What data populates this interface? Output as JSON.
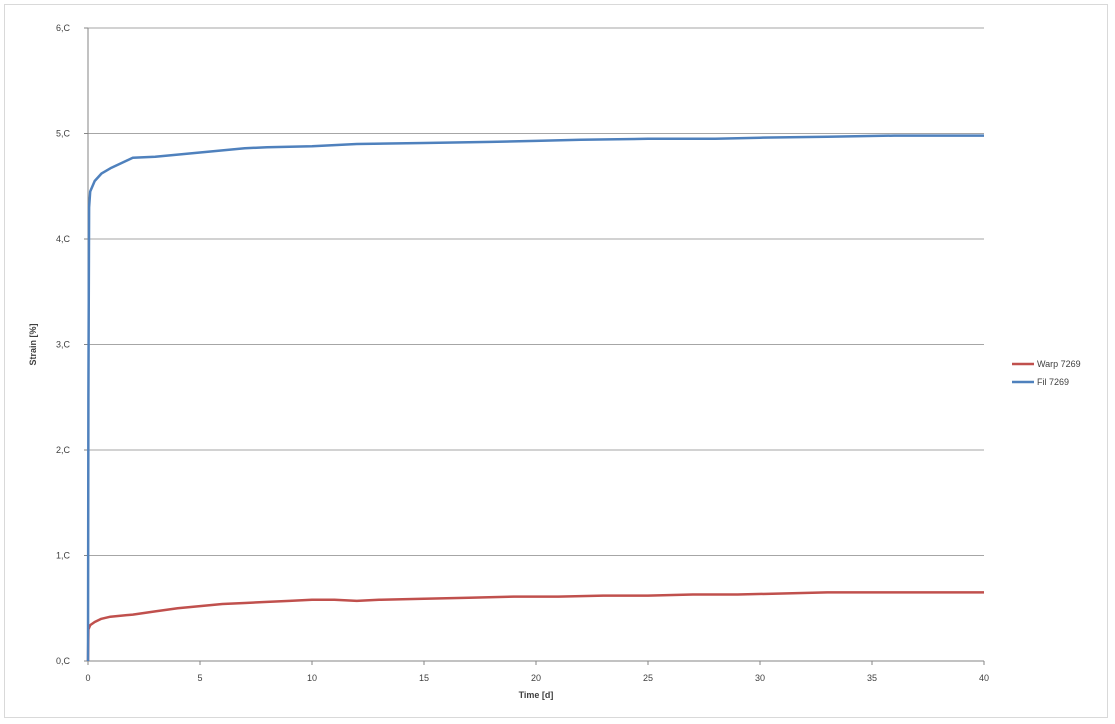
{
  "chart_data": {
    "type": "line",
    "title": "",
    "xlabel": "Time [d]",
    "ylabel": "Strain [%]",
    "xlim": [
      0,
      40
    ],
    "ylim": [
      0,
      6
    ],
    "x_ticks": [
      "0",
      "5",
      "10",
      "15",
      "20",
      "25",
      "30",
      "35",
      "40"
    ],
    "x_tick_values": [
      0,
      5,
      10,
      15,
      20,
      25,
      30,
      35,
      40
    ],
    "y_ticks": [
      "0,C",
      "1,C",
      "2,C",
      "3,C",
      "4,C",
      "5,C",
      "6,C"
    ],
    "y_tick_values": [
      0,
      1,
      2,
      3,
      4,
      5,
      6
    ],
    "grid": "horizontal",
    "legend_position": "right",
    "series": [
      {
        "name": "Warp 7269",
        "color": "#c0504d",
        "points": [
          [
            0,
            0
          ],
          [
            0.02,
            0.3
          ],
          [
            0.1,
            0.34
          ],
          [
            0.3,
            0.37
          ],
          [
            0.6,
            0.4
          ],
          [
            1,
            0.42
          ],
          [
            2,
            0.44
          ],
          [
            3,
            0.47
          ],
          [
            4,
            0.5
          ],
          [
            5,
            0.52
          ],
          [
            6,
            0.54
          ],
          [
            7,
            0.55
          ],
          [
            8,
            0.56
          ],
          [
            9,
            0.57
          ],
          [
            10,
            0.58
          ],
          [
            11,
            0.58
          ],
          [
            12,
            0.57
          ],
          [
            13,
            0.58
          ],
          [
            15,
            0.59
          ],
          [
            17,
            0.6
          ],
          [
            19,
            0.61
          ],
          [
            21,
            0.61
          ],
          [
            23,
            0.62
          ],
          [
            25,
            0.62
          ],
          [
            27,
            0.63
          ],
          [
            29,
            0.63
          ],
          [
            31,
            0.64
          ],
          [
            33,
            0.65
          ],
          [
            35,
            0.65
          ],
          [
            37,
            0.65
          ],
          [
            40,
            0.65
          ]
        ]
      },
      {
        "name": "Fil 7269",
        "color": "#4f81bd",
        "points": [
          [
            0,
            0
          ],
          [
            0.02,
            2.5
          ],
          [
            0.05,
            4.3
          ],
          [
            0.1,
            4.45
          ],
          [
            0.3,
            4.55
          ],
          [
            0.6,
            4.62
          ],
          [
            1,
            4.67
          ],
          [
            1.5,
            4.72
          ],
          [
            2,
            4.77
          ],
          [
            3,
            4.78
          ],
          [
            4,
            4.8
          ],
          [
            5,
            4.82
          ],
          [
            6,
            4.84
          ],
          [
            7,
            4.86
          ],
          [
            8,
            4.87
          ],
          [
            10,
            4.88
          ],
          [
            12,
            4.9
          ],
          [
            15,
            4.91
          ],
          [
            18,
            4.92
          ],
          [
            20,
            4.93
          ],
          [
            22,
            4.94
          ],
          [
            25,
            4.95
          ],
          [
            28,
            4.95
          ],
          [
            30,
            4.96
          ],
          [
            33,
            4.97
          ],
          [
            36,
            4.98
          ],
          [
            38,
            4.98
          ],
          [
            40,
            4.98
          ]
        ]
      }
    ]
  }
}
